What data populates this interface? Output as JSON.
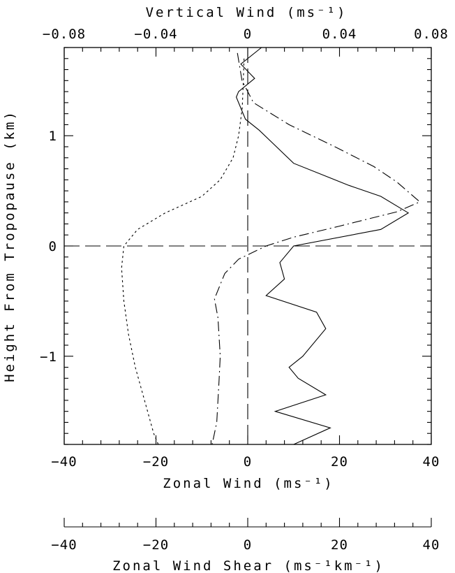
{
  "chart_data": {
    "type": "line",
    "title": "",
    "y_axis": {
      "label": "Height From Tropopause (km)",
      "range": [
        -1.8,
        1.8
      ],
      "ticks": [
        1,
        0,
        -1
      ],
      "tick_labels": [
        "1",
        "0",
        "−1"
      ],
      "minor_step": 0.1
    },
    "x_axis_bottom": {
      "label": "Zonal Wind (ms⁻¹)",
      "range": [
        -40,
        40
      ],
      "ticks": [
        -40,
        -20,
        0,
        20,
        40
      ],
      "tick_labels": [
        "−40",
        "−20",
        "0",
        "20",
        "40"
      ],
      "minor_step": 4
    },
    "x_axis_top": {
      "label": "Vertical Wind (ms⁻¹)",
      "range": [
        -0.08,
        0.08
      ],
      "ticks": [
        -0.08,
        -0.04,
        0,
        0.04,
        0.08
      ],
      "tick_labels": [
        "−0.08",
        "−0.04",
        "0",
        "0.04",
        "0.08"
      ],
      "minor_step": 0.008
    },
    "x_axis_shear": {
      "label": "Zonal Wind Shear (ms⁻¹km⁻¹)",
      "range": [
        -40,
        40
      ],
      "ticks": [
        -40,
        -20,
        0,
        20,
        40
      ],
      "tick_labels": [
        "−40",
        "−20",
        "0",
        "20",
        "40"
      ],
      "minor_step": 4
    },
    "reference_lines": {
      "vertical_x": 0,
      "horizontal_y": 0,
      "style": "long-dash"
    },
    "series": [
      {
        "axis": "zonal_wind_shear",
        "style": "dotted",
        "points": [
          [
            -0.8,
            1.7
          ],
          [
            -1,
            1.45
          ],
          [
            -1.2,
            1.25
          ],
          [
            -2,
            1.0
          ],
          [
            -3.2,
            0.8
          ],
          [
            -6,
            0.6
          ],
          [
            -10,
            0.45
          ],
          [
            -18,
            0.3
          ],
          [
            -24,
            0.15
          ],
          [
            -27,
            0.0
          ],
          [
            -27.5,
            -0.2
          ],
          [
            -27,
            -0.5
          ],
          [
            -26,
            -0.8
          ],
          [
            -24.5,
            -1.1
          ],
          [
            -22.5,
            -1.4
          ],
          [
            -20.5,
            -1.7
          ],
          [
            -19.5,
            -1.8
          ]
        ]
      },
      {
        "axis": "vertical_wind",
        "style": "dash-dot",
        "points": [
          [
            -0.0045,
            1.75
          ],
          [
            -0.0025,
            1.5
          ],
          [
            0.0025,
            1.3
          ],
          [
            0.018,
            1.1
          ],
          [
            0.038,
            0.9
          ],
          [
            0.055,
            0.72
          ],
          [
            0.065,
            0.58
          ],
          [
            0.075,
            0.4
          ],
          [
            0.065,
            0.31
          ],
          [
            0.04,
            0.18
          ],
          [
            0.02,
            0.08
          ],
          [
            0.008,
            0.0
          ],
          [
            -0.004,
            -0.12
          ],
          [
            -0.01,
            -0.25
          ],
          [
            -0.0145,
            -0.48
          ],
          [
            -0.013,
            -0.65
          ],
          [
            -0.012,
            -1.0
          ],
          [
            -0.0125,
            -1.22
          ],
          [
            -0.0135,
            -1.6
          ],
          [
            -0.0155,
            -1.8
          ]
        ]
      },
      {
        "axis": "zonal_wind",
        "style": "solid",
        "points": [
          [
            3,
            1.8
          ],
          [
            -1.5,
            1.65
          ],
          [
            1.5,
            1.52
          ],
          [
            -2,
            1.4
          ],
          [
            -2.5,
            1.35
          ],
          [
            -0.5,
            1.15
          ],
          [
            2.5,
            1.05
          ],
          [
            10,
            0.75
          ],
          [
            22,
            0.55
          ],
          [
            29,
            0.45
          ],
          [
            35,
            0.3
          ],
          [
            29,
            0.15
          ],
          [
            10,
            0.0
          ],
          [
            7,
            -0.15
          ],
          [
            8,
            -0.3
          ],
          [
            4,
            -0.45
          ],
          [
            15,
            -0.6
          ],
          [
            17,
            -0.75
          ],
          [
            12,
            -1.0
          ],
          [
            9,
            -1.1
          ],
          [
            11,
            -1.2
          ],
          [
            17,
            -1.35
          ],
          [
            6,
            -1.5
          ],
          [
            18,
            -1.65
          ],
          [
            10,
            -1.8
          ]
        ]
      }
    ],
    "grid": false,
    "legend": "none"
  }
}
